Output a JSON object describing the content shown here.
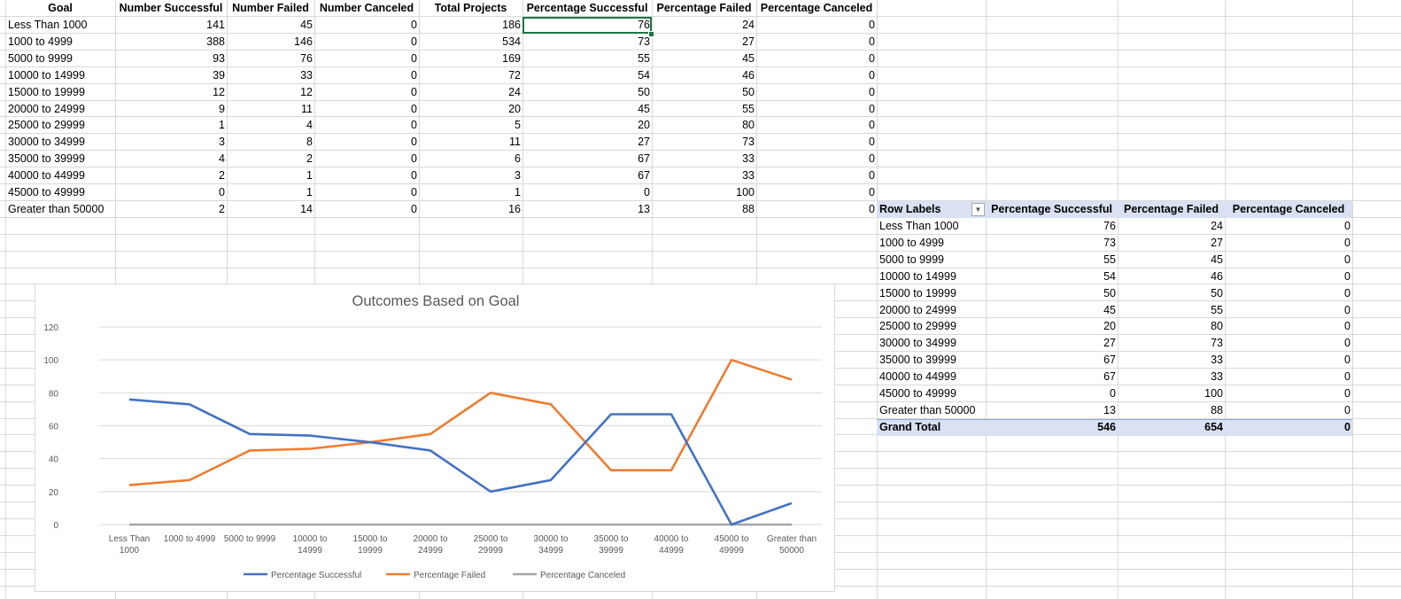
{
  "sheet": {
    "headers": [
      "Goal",
      "Number Successful",
      "Number Failed",
      "Number Canceled",
      "Total Projects",
      "Percentage Successful",
      "Percentage Failed",
      "Percentage Canceled"
    ],
    "rows": [
      {
        "goal": "Less Than 1000",
        "succ": "141",
        "fail": "45",
        "canc": "0",
        "total": "186",
        "psucc": "76",
        "pfail": "24",
        "pcanc": "0"
      },
      {
        "goal": "1000 to 4999",
        "succ": "388",
        "fail": "146",
        "canc": "0",
        "total": "534",
        "psucc": "73",
        "pfail": "27",
        "pcanc": "0"
      },
      {
        "goal": "5000 to 9999",
        "succ": "93",
        "fail": "76",
        "canc": "0",
        "total": "169",
        "psucc": "55",
        "pfail": "45",
        "pcanc": "0"
      },
      {
        "goal": "10000 to 14999",
        "succ": "39",
        "fail": "33",
        "canc": "0",
        "total": "72",
        "psucc": "54",
        "pfail": "46",
        "pcanc": "0"
      },
      {
        "goal": "15000 to 19999",
        "succ": "12",
        "fail": "12",
        "canc": "0",
        "total": "24",
        "psucc": "50",
        "pfail": "50",
        "pcanc": "0"
      },
      {
        "goal": "20000 to 24999",
        "succ": "9",
        "fail": "11",
        "canc": "0",
        "total": "20",
        "psucc": "45",
        "pfail": "55",
        "pcanc": "0"
      },
      {
        "goal": "25000 to 29999",
        "succ": "1",
        "fail": "4",
        "canc": "0",
        "total": "5",
        "psucc": "20",
        "pfail": "80",
        "pcanc": "0"
      },
      {
        "goal": "30000 to 34999",
        "succ": "3",
        "fail": "8",
        "canc": "0",
        "total": "11",
        "psucc": "27",
        "pfail": "73",
        "pcanc": "0"
      },
      {
        "goal": "35000 to 39999",
        "succ": "4",
        "fail": "2",
        "canc": "0",
        "total": "6",
        "psucc": "67",
        "pfail": "33",
        "pcanc": "0"
      },
      {
        "goal": "40000 to 44999",
        "succ": "2",
        "fail": "1",
        "canc": "0",
        "total": "3",
        "psucc": "67",
        "pfail": "33",
        "pcanc": "0"
      },
      {
        "goal": "45000 to 49999",
        "succ": "0",
        "fail": "1",
        "canc": "0",
        "total": "1",
        "psucc": "0",
        "pfail": "100",
        "pcanc": "0"
      },
      {
        "goal": "Greater than 50000",
        "succ": "2",
        "fail": "14",
        "canc": "0",
        "total": "16",
        "psucc": "13",
        "pfail": "88",
        "pcanc": "0"
      }
    ]
  },
  "pivot": {
    "headers": [
      "Row Labels",
      "Percentage Successful",
      "Percentage Failed",
      "Percentage Canceled"
    ],
    "rows": [
      {
        "label": "Less Than 1000",
        "psucc": "76",
        "pfail": "24",
        "pcanc": "0"
      },
      {
        "label": "1000 to 4999",
        "psucc": "73",
        "pfail": "27",
        "pcanc": "0"
      },
      {
        "label": "5000 to 9999",
        "psucc": "55",
        "pfail": "45",
        "pcanc": "0"
      },
      {
        "label": "10000 to 14999",
        "psucc": "54",
        "pfail": "46",
        "pcanc": "0"
      },
      {
        "label": "15000 to 19999",
        "psucc": "50",
        "pfail": "50",
        "pcanc": "0"
      },
      {
        "label": "20000 to 24999",
        "psucc": "45",
        "pfail": "55",
        "pcanc": "0"
      },
      {
        "label": "25000 to 29999",
        "psucc": "20",
        "pfail": "80",
        "pcanc": "0"
      },
      {
        "label": "30000 to 34999",
        "psucc": "27",
        "pfail": "73",
        "pcanc": "0"
      },
      {
        "label": "35000 to 39999",
        "psucc": "67",
        "pfail": "33",
        "pcanc": "0"
      },
      {
        "label": "40000 to 44999",
        "psucc": "67",
        "pfail": "33",
        "pcanc": "0"
      },
      {
        "label": "45000 to 49999",
        "psucc": "0",
        "pfail": "100",
        "pcanc": "0"
      },
      {
        "label": "Greater than 50000",
        "psucc": "13",
        "pfail": "88",
        "pcanc": "0"
      }
    ],
    "total": {
      "label": "Grand Total",
      "psucc": "546",
      "pfail": "654",
      "pcanc": "0"
    },
    "filter_icon": "dropdown-arrow-icon"
  },
  "colors": {
    "successful": "#4472c4",
    "failed": "#ed7d31",
    "canceled": "#a5a5a5",
    "selection": "#217346",
    "pivot_header": "#d9e1f2"
  },
  "chart_data": {
    "type": "line",
    "title": "Outcomes Based on Goal",
    "categories": [
      [
        "Less Than",
        "1000"
      ],
      [
        "1000 to 4999"
      ],
      [
        "5000 to 9999"
      ],
      [
        "10000 to",
        "14999"
      ],
      [
        "15000 to",
        "19999"
      ],
      [
        "20000 to",
        "24999"
      ],
      [
        "25000 to",
        "29999"
      ],
      [
        "30000 to",
        "34999"
      ],
      [
        "35000 to",
        "39999"
      ],
      [
        "40000 to",
        "44999"
      ],
      [
        "45000 to",
        "49999"
      ],
      [
        "Greater than",
        "50000"
      ]
    ],
    "series": [
      {
        "name": "Percentage Successful",
        "color": "#4472c4",
        "values": [
          76,
          73,
          55,
          54,
          50,
          45,
          20,
          27,
          67,
          67,
          0,
          13
        ]
      },
      {
        "name": "Percentage Failed",
        "color": "#ed7d31",
        "values": [
          24,
          27,
          45,
          46,
          50,
          55,
          80,
          73,
          33,
          33,
          100,
          88
        ]
      },
      {
        "name": "Percentage Canceled",
        "color": "#a5a5a5",
        "values": [
          0,
          0,
          0,
          0,
          0,
          0,
          0,
          0,
          0,
          0,
          0,
          0
        ]
      }
    ],
    "ylim": [
      0,
      120
    ],
    "yticks": [
      0,
      20,
      40,
      60,
      80,
      100,
      120
    ],
    "grid": true,
    "legend": "bottom"
  }
}
